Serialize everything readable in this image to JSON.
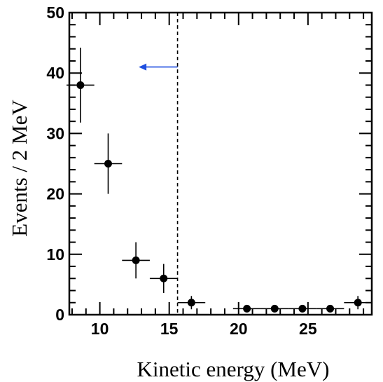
{
  "chart_data": {
    "type": "scatter",
    "xlabel": "Kinetic energy (MeV)",
    "ylabel": "Events /  2 MeV",
    "xlim": [
      7.8,
      29.6
    ],
    "ylim": [
      0,
      50
    ],
    "x_ticks": [
      "10",
      "15",
      "20",
      "25"
    ],
    "y_ticks": [
      "0",
      "10",
      "20",
      "30",
      "40",
      "50"
    ],
    "series": [
      {
        "points": [
          {
            "x": 8.6,
            "y": 38,
            "xerr": 1,
            "yerr_low": 6.2,
            "yerr_high": 6.2
          },
          {
            "x": 10.6,
            "y": 25,
            "xerr": 1,
            "yerr_low": 5.0,
            "yerr_high": 5.0
          },
          {
            "x": 12.6,
            "y": 9,
            "xerr": 1,
            "yerr_low": 3.0,
            "yerr_high": 3.0
          },
          {
            "x": 14.6,
            "y": 6,
            "xerr": 1,
            "yerr_low": 2.4,
            "yerr_high": 2.4
          },
          {
            "x": 16.6,
            "y": 2,
            "xerr": 1,
            "yerr_low": 1.1,
            "yerr_high": 1.1
          },
          {
            "x": 20.6,
            "y": 1,
            "xerr": 1,
            "yerr_low": 0.6,
            "yerr_high": 0.6
          },
          {
            "x": 22.6,
            "y": 1,
            "xerr": 1,
            "yerr_low": 0.6,
            "yerr_high": 0.6
          },
          {
            "x": 24.6,
            "y": 1,
            "xerr": 1,
            "yerr_low": 0.6,
            "yerr_high": 0.6
          },
          {
            "x": 26.6,
            "y": 1,
            "xerr": 1,
            "yerr_low": 0.6,
            "yerr_high": 0.6
          },
          {
            "x": 28.6,
            "y": 2,
            "xerr": 1,
            "yerr_low": 1.1,
            "yerr_high": 1.1
          }
        ]
      }
    ],
    "cut_line": {
      "x": 15.6,
      "style": "dashed",
      "color": "#000000"
    },
    "arrow": {
      "x_from": 15.6,
      "x_to": 12.8,
      "y": 41,
      "color": "#1f4fe0"
    },
    "grid": false,
    "marker_color": "#000000"
  }
}
